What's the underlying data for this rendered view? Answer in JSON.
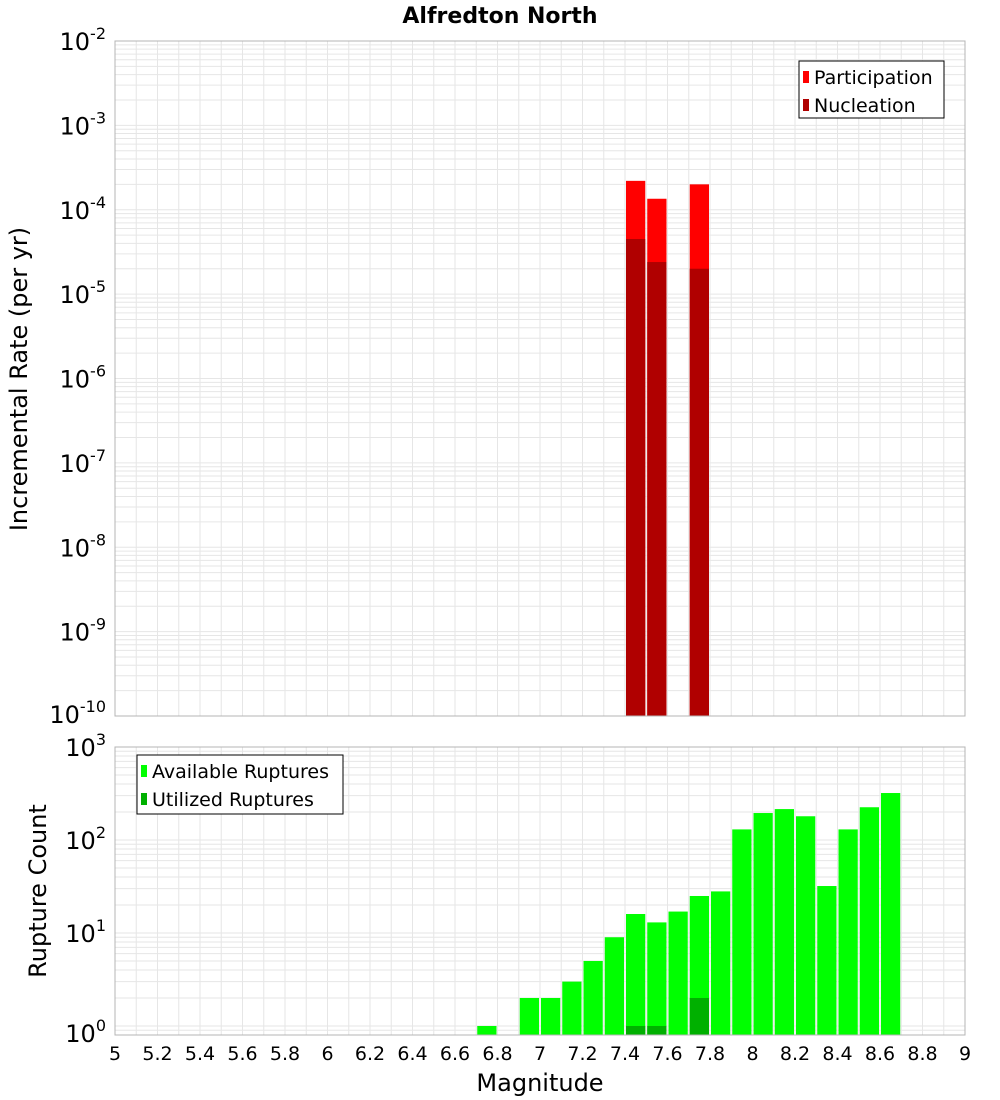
{
  "title": "Alfredton North",
  "colors": {
    "participation": "#ff0000",
    "nucleation": "#b00000",
    "available": "#00ff00",
    "utilized": "#00b000",
    "grid": "#e6e6e6",
    "frame": "#b4b4b4"
  },
  "chart_data": [
    {
      "type": "bar",
      "title": "Alfredton North",
      "xlabel": "Magnitude",
      "ylabel": "Incremental Rate (per yr)",
      "yscale": "log",
      "xlim": [
        5,
        9
      ],
      "ylim": [
        1e-10,
        0.01
      ],
      "grid": true,
      "legend_position": "top-right",
      "bin_width": 0.1,
      "series": [
        {
          "name": "Participation",
          "x": [
            7.45,
            7.55,
            7.75
          ],
          "values": [
            0.00022,
            0.000135,
            0.0002
          ]
        },
        {
          "name": "Nucleation",
          "x": [
            7.45,
            7.55,
            7.75
          ],
          "values": [
            4.5e-05,
            2.4e-05,
            2e-05
          ]
        }
      ]
    },
    {
      "type": "bar",
      "xlabel": "Magnitude",
      "ylabel": "Rupture Count",
      "yscale": "log",
      "xlim": [
        5,
        9
      ],
      "ylim": [
        0.8,
        1000
      ],
      "grid": true,
      "legend_position": "top-left",
      "bin_width": 0.1,
      "series": [
        {
          "name": "Available Ruptures",
          "x": [
            6.75,
            6.95,
            7.05,
            7.15,
            7.25,
            7.35,
            7.45,
            7.55,
            7.65,
            7.75,
            7.85,
            7.95,
            8.05,
            8.15,
            8.25,
            8.35,
            8.45,
            8.55,
            8.65
          ],
          "values": [
            1,
            2,
            2,
            3,
            5,
            9,
            16,
            13,
            17,
            25,
            28,
            130,
            195,
            215,
            180,
            32,
            130,
            225,
            320
          ]
        },
        {
          "name": "Utilized Ruptures",
          "x": [
            7.45,
            7.55,
            7.75
          ],
          "values": [
            1,
            1,
            2
          ]
        }
      ]
    }
  ],
  "x_ticks": [
    "5",
    "5.2",
    "5.4",
    "5.6",
    "5.8",
    "6",
    "6.2",
    "6.4",
    "6.6",
    "6.8",
    "7",
    "7.2",
    "7.4",
    "7.6",
    "7.8",
    "8",
    "8.2",
    "8.4",
    "8.6",
    "8.8",
    "9"
  ],
  "top_yticks": [
    {
      "base": "10",
      "exp": "-10"
    },
    {
      "base": "10",
      "exp": "-9"
    },
    {
      "base": "10",
      "exp": "-8"
    },
    {
      "base": "10",
      "exp": "-7"
    },
    {
      "base": "10",
      "exp": "-6"
    },
    {
      "base": "10",
      "exp": "-5"
    },
    {
      "base": "10",
      "exp": "-4"
    },
    {
      "base": "10",
      "exp": "-3"
    },
    {
      "base": "10",
      "exp": "-2"
    }
  ],
  "bottom_yticks": [
    {
      "base": "10",
      "exp": "0"
    },
    {
      "base": "10",
      "exp": "1"
    },
    {
      "base": "10",
      "exp": "2"
    },
    {
      "base": "10",
      "exp": "3"
    }
  ]
}
